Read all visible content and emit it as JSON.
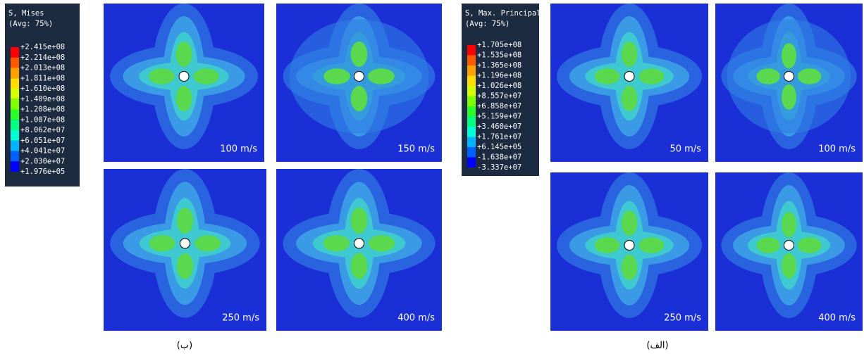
{
  "left_panel": {
    "legend": {
      "title": [
        "S, Mises",
        "(Avg: 75%)"
      ],
      "labels": [
        "+2.415e+08",
        "+2.214e+08",
        "+2.013e+08",
        "+1.811e+08",
        "+1.610e+08",
        "+1.409e+08",
        "+1.208e+08",
        "+1.007e+08",
        "+8.062e+07",
        "+6.051e+07",
        "+4.041e+07",
        "+2.030e+07",
        "+1.976e+05"
      ]
    },
    "images": [
      "100 m/s",
      "150 m/s",
      "250 m/s",
      "400 m/s"
    ],
    "caption": "(ب)"
  },
  "right_panel": {
    "legend": {
      "title": [
        "S, Max. Principal",
        "(Avg: 75%)"
      ],
      "labels": [
        "+1.705e+08",
        "+1.535e+08",
        "+1.365e+08",
        "+1.196e+08",
        "+1.026e+08",
        "+8.557e+07",
        "+6.858e+07",
        "+5.159e+07",
        "+3.460e+07",
        "+1.761e+07",
        "+6.145e+05",
        "-1.638e+07",
        "-3.337e+07"
      ]
    },
    "images": [
      "50 m/s",
      "100 m/s",
      "250 m/s",
      "400 m/s"
    ],
    "caption": "(الف)"
  }
}
